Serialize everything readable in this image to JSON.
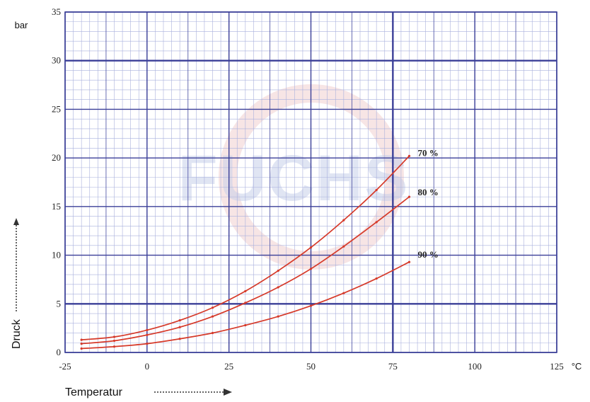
{
  "watermark": "FUCHS",
  "chart_data": {
    "type": "line",
    "ylabel": "Druck",
    "yunit": "bar",
    "xlabel": "Temperatur",
    "xunit": "°C",
    "xlim": [
      -25,
      125
    ],
    "ylim": [
      0,
      35
    ],
    "x_ticks": [
      -25,
      0,
      25,
      50,
      75,
      100,
      125
    ],
    "y_ticks": [
      0,
      5,
      10,
      15,
      20,
      25,
      30,
      35
    ],
    "grid": true,
    "colors": {
      "series": "#d63a2a",
      "grid_minor": "#a9b0dd",
      "grid_major": "#3b3f98",
      "background": "#ffffff"
    },
    "series": [
      {
        "name": "70 %",
        "x": [
          -20,
          -10,
          0,
          10,
          20,
          30,
          40,
          50,
          60,
          70,
          80
        ],
        "values": [
          1.3,
          1.6,
          2.3,
          3.3,
          4.6,
          6.3,
          8.4,
          10.8,
          13.6,
          16.7,
          20.2
        ]
      },
      {
        "name": "80 %",
        "x": [
          -20,
          -10,
          0,
          10,
          20,
          30,
          40,
          50,
          60,
          70,
          80
        ],
        "values": [
          0.9,
          1.2,
          1.8,
          2.6,
          3.7,
          5.1,
          6.7,
          8.6,
          10.9,
          13.4,
          16.0
        ]
      },
      {
        "name": "90 %",
        "x": [
          -20,
          -10,
          0,
          10,
          20,
          30,
          40,
          50,
          60,
          70,
          80
        ],
        "values": [
          0.4,
          0.6,
          0.9,
          1.4,
          2.0,
          2.8,
          3.7,
          4.8,
          6.1,
          7.6,
          9.3
        ]
      }
    ]
  }
}
